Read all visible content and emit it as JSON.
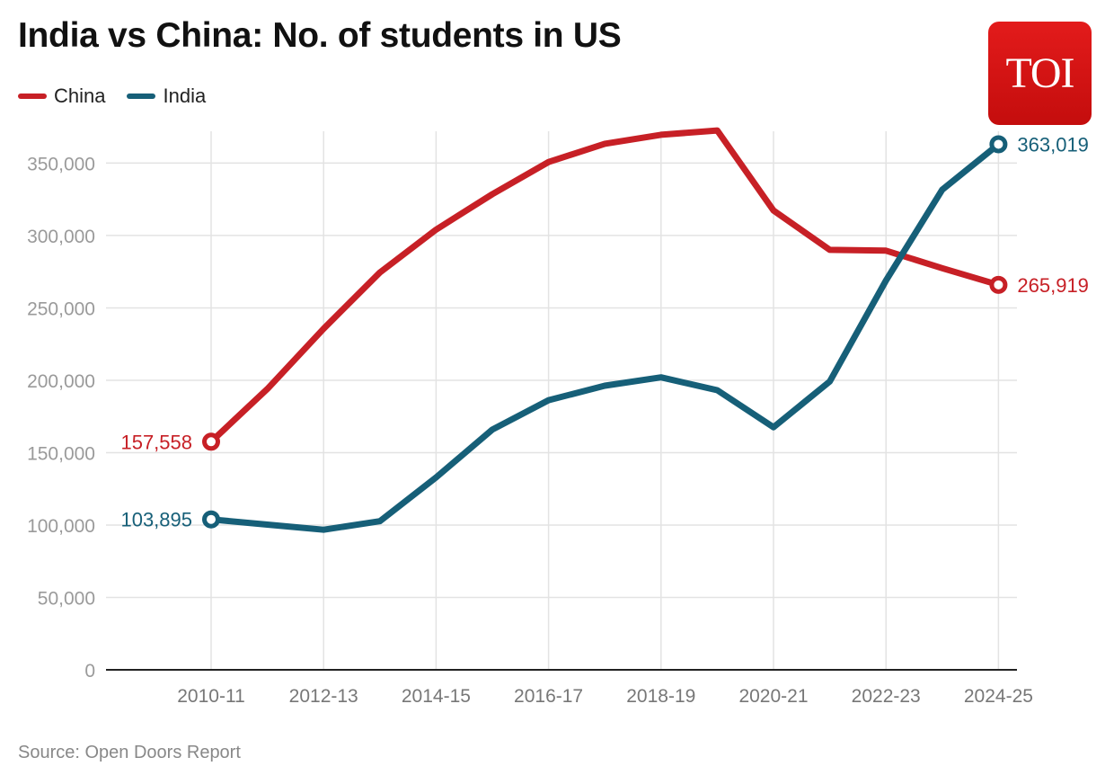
{
  "title": "India vs China: No. of students in US",
  "legend": [
    {
      "label": "China",
      "color": "#c72026"
    },
    {
      "label": "India",
      "color": "#165f78"
    }
  ],
  "logo": {
    "text": "TOI",
    "color": "#e31b1b"
  },
  "source": "Source: Open Doors Report",
  "chart_data": {
    "type": "line",
    "title": "India vs China: No. of students in US",
    "xlabel": "",
    "ylabel": "",
    "x": [
      "2010-11",
      "2011-12",
      "2012-13",
      "2013-14",
      "2014-15",
      "2015-16",
      "2016-17",
      "2017-18",
      "2018-19",
      "2019-20",
      "2020-21",
      "2021-22",
      "2022-23",
      "2023-24",
      "2024-25"
    ],
    "x_tick_labels": [
      "2010-11",
      "2012-13",
      "2014-15",
      "2016-17",
      "2018-19",
      "2020-21",
      "2022-23",
      "2024-25"
    ],
    "ylim": [
      0,
      372000
    ],
    "y_ticks": [
      0,
      50000,
      100000,
      150000,
      200000,
      250000,
      300000,
      350000
    ],
    "y_tick_labels": [
      "0",
      "50,000",
      "100,000",
      "150,000",
      "200,000",
      "250,000",
      "300,000",
      "350,000"
    ],
    "grid": true,
    "legend_position": "top-left",
    "series": [
      {
        "name": "China",
        "color": "#c72026",
        "values": [
          157558,
          194029,
          235597,
          274439,
          304040,
          328547,
          350755,
          363341,
          369548,
          372532,
          317299,
          290086,
          289526,
          277398,
          265919
        ]
      },
      {
        "name": "India",
        "color": "#165f78",
        "values": [
          103895,
          100270,
          96754,
          102673,
          132888,
          165918,
          186267,
          196271,
          202014,
          193124,
          167582,
          199182,
          268923,
          331602,
          363019
        ]
      }
    ],
    "annotations": [
      {
        "series": "China",
        "point": "start",
        "text": "157,558"
      },
      {
        "series": "India",
        "point": "start",
        "text": "103,895"
      },
      {
        "series": "India",
        "point": "end",
        "text": "363,019"
      },
      {
        "series": "China",
        "point": "end",
        "text": "265,919"
      }
    ]
  }
}
